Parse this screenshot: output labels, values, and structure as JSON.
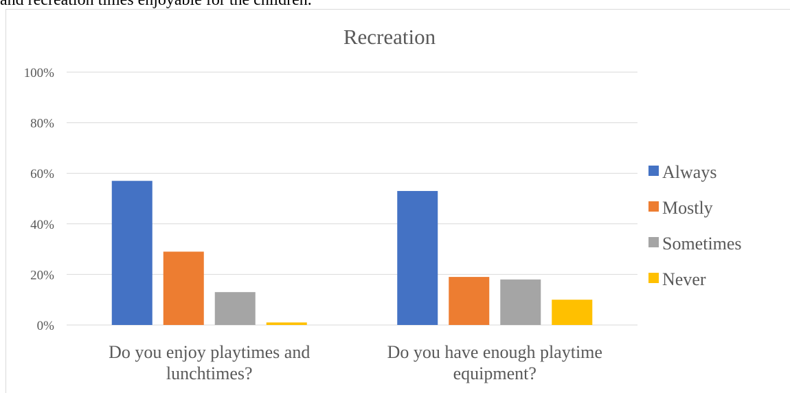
{
  "context_text": "and recreation times enjoyable for the children.",
  "chart_data": {
    "type": "bar",
    "title": "Recreation",
    "categories": [
      [
        "Do you enjoy playtimes and",
        "lunchtimes?"
      ],
      [
        "Do you have enough playtime",
        "equipment?"
      ]
    ],
    "series": [
      {
        "name": "Always",
        "color": "#4472c4",
        "values": [
          57,
          53
        ]
      },
      {
        "name": "Mostly",
        "color": "#ed7d31",
        "values": [
          29,
          19
        ]
      },
      {
        "name": "Sometimes",
        "color": "#a5a5a5",
        "values": [
          13,
          18
        ]
      },
      {
        "name": "Never",
        "color": "#ffc000",
        "values": [
          1,
          10
        ]
      }
    ],
    "ylim": [
      0,
      100
    ],
    "yticks": [
      "0%",
      "20%",
      "40%",
      "60%",
      "80%",
      "100%"
    ],
    "ytick_values": [
      0,
      20,
      40,
      60,
      80,
      100
    ],
    "grid": true,
    "legend_position": "right"
  }
}
